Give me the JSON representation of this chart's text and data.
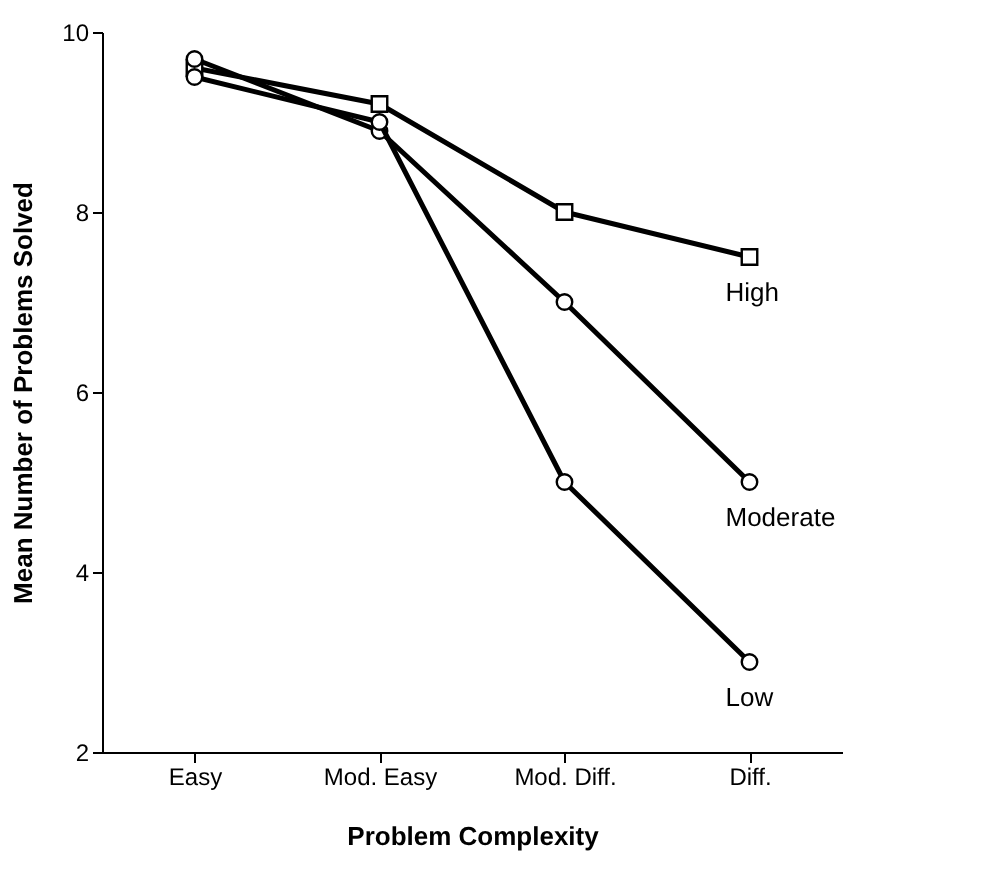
{
  "chart_data": {
    "type": "line",
    "xlabel": "Problem Complexity",
    "ylabel": "Mean Number of Problems Solved",
    "categories": [
      "Easy",
      "Mod. Easy",
      "Mod. Diff.",
      "Diff."
    ],
    "series": [
      {
        "name": "High",
        "color": "#000000",
        "marker": "square",
        "values": [
          9.6,
          9.2,
          8.0,
          7.5
        ]
      },
      {
        "name": "Moderate",
        "color": "#000000",
        "marker": "circle",
        "values": [
          9.7,
          8.9,
          7.0,
          5.0
        ]
      },
      {
        "name": "Low",
        "color": "#000000",
        "marker": "circle",
        "values": [
          9.5,
          9.0,
          5.0,
          3.0
        ]
      }
    ],
    "ylim": [
      2,
      10
    ],
    "yticks": [
      2,
      4,
      6,
      8,
      10
    ],
    "grid": false,
    "legend": false,
    "line_style": "solid"
  }
}
